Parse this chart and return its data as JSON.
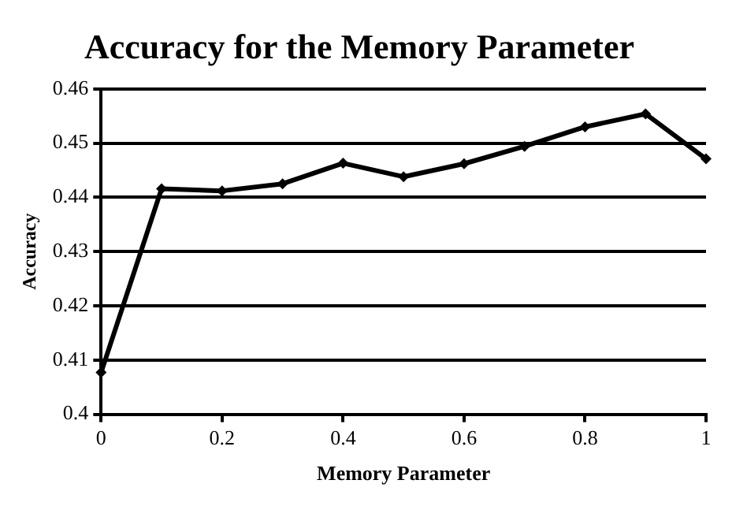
{
  "chart_data": {
    "type": "line",
    "title": "Accuracy for the Memory Parameter",
    "xlabel": "Memory Parameter",
    "ylabel": "Accuracy",
    "x": [
      0,
      0.1,
      0.2,
      0.3,
      0.4,
      0.5,
      0.6,
      0.7,
      0.8,
      0.9,
      1
    ],
    "series": [
      {
        "color": "#000000",
        "values": [
          0.4077,
          0.4416,
          0.4412,
          0.4425,
          0.4463,
          0.4438,
          0.4462,
          0.4494,
          0.453,
          0.4554,
          0.4471
        ]
      }
    ],
    "xlim": [
      0,
      1
    ],
    "xticks": [
      0,
      0.2,
      0.4,
      0.6,
      0.8,
      1
    ],
    "ylim": [
      0.4,
      0.46
    ],
    "yticks": [
      0.4,
      0.41,
      0.42,
      0.43,
      0.44,
      0.45,
      0.46
    ],
    "grid": "y",
    "legend": false,
    "marker": "diamond",
    "line_style": "solid"
  }
}
